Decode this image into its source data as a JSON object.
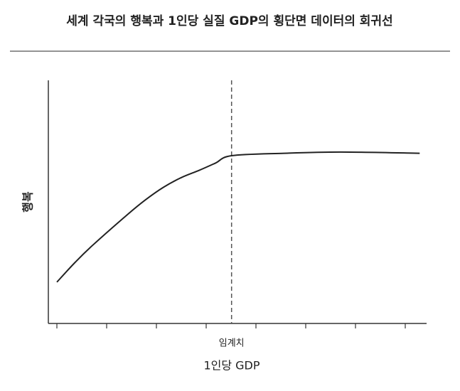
{
  "chart_data": {
    "type": "line",
    "title": "세계 각국의 행복과 1인당 실질 GDP의 횡단면 데이터의 회귀선",
    "x_label": "1인당 GDP",
    "y_label": "행복",
    "x": [
      0,
      0.36,
      0.71,
      1.43,
      1.79,
      2.14,
      2.5,
      2.86,
      3.19,
      3.51,
      4.57,
      5.71,
      7.29
    ],
    "series": [
      {
        "color": "#222222",
        "values": [
          1.7,
          2.5,
          3.2,
          4.5,
          5.1,
          5.6,
          6.0,
          6.3,
          6.6,
          6.9,
          7.0,
          7.05,
          7.0
        ]
      }
    ],
    "xlim": [
      0,
      7
    ],
    "ylim": [
      0,
      10
    ],
    "threshold": {
      "label": "임계치",
      "x": 3.51
    }
  }
}
